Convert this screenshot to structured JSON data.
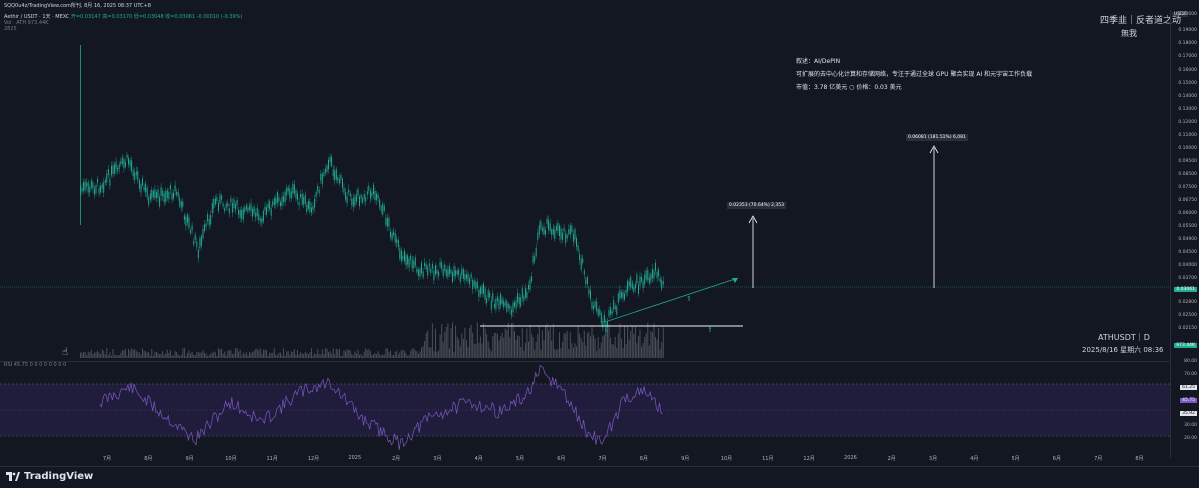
{
  "header": {
    "topline": "SQQ0u4z/TradingView.com所刊, 8月 16, 2025 08:37 UTC+8",
    "symbol_line": "Aethir / USDT · 1天 · MEXC",
    "ohlc": "开=0.03147  高=0.03170  低=0.03048  收=0.03061  -0.00010 (-0.39%)",
    "vol_line": "Vol · ATH  973.44K",
    "ind_line": "2825",
    "badge": "USDT"
  },
  "watermark": {
    "author": "四季韭｜反者道之动",
    "subtitle": "無我",
    "symbol": "ATHUSDT｜D",
    "datetime": "2025/8/16 星期六 08:36"
  },
  "note": {
    "line1": "叙述：AI/DePIN",
    "line2": "可扩展的去中心化计算和存储网络，专注于通过全球 GPU 聚合实现 AI 和元宇宙工作负载",
    "line3": "市值：3.78 亿美元 ○ 价格：0.03 美元"
  },
  "annotations": {
    "target1": "0.02353 (70.64%) 2,353",
    "target2": "0.06081 (181.51%) 6,081"
  },
  "rsi": {
    "label": "RSI  45.75  0  0  0  0  0  0  0  0",
    "levels": [
      "80.00",
      "70.00",
      "61.25",
      "45.75",
      "35.92",
      "30.00",
      "20.00"
    ],
    "current": "45.75"
  },
  "price_axis": {
    "ticks": [
      "0.20000",
      "0.19000",
      "0.18000",
      "0.17000",
      "0.16000",
      "0.15000",
      "0.14000",
      "0.13000",
      "0.12000",
      "0.11000",
      "0.10000",
      "0.09500",
      "0.08500",
      "0.07500",
      "0.06750",
      "0.06000",
      "0.05500",
      "0.04900",
      "0.04500",
      "0.04000",
      "0.03700",
      "0.03061",
      "0.02800",
      "0.02500",
      "0.02150",
      "973.44K"
    ],
    "current_price": "0.03061",
    "current_vol": "973.44K"
  },
  "time_axis": {
    "ticks": [
      "7月",
      "8月",
      "9月",
      "10月",
      "11月",
      "12月",
      "2025",
      "2月",
      "3月",
      "4月",
      "5月",
      "6月",
      "7月",
      "8月",
      "9月",
      "10月",
      "11月",
      "12月",
      "2026",
      "2月",
      "3月",
      "4月",
      "5月",
      "6月",
      "7月",
      "8月"
    ]
  },
  "footer": {
    "brand": "TradingView"
  },
  "colors": {
    "background": "#131722",
    "candle": "#22ab94",
    "rsi_line": "#7e57c2",
    "rsi_band": "#2a2350",
    "projection": "#22ab94",
    "arrow": "#ffffff"
  }
}
